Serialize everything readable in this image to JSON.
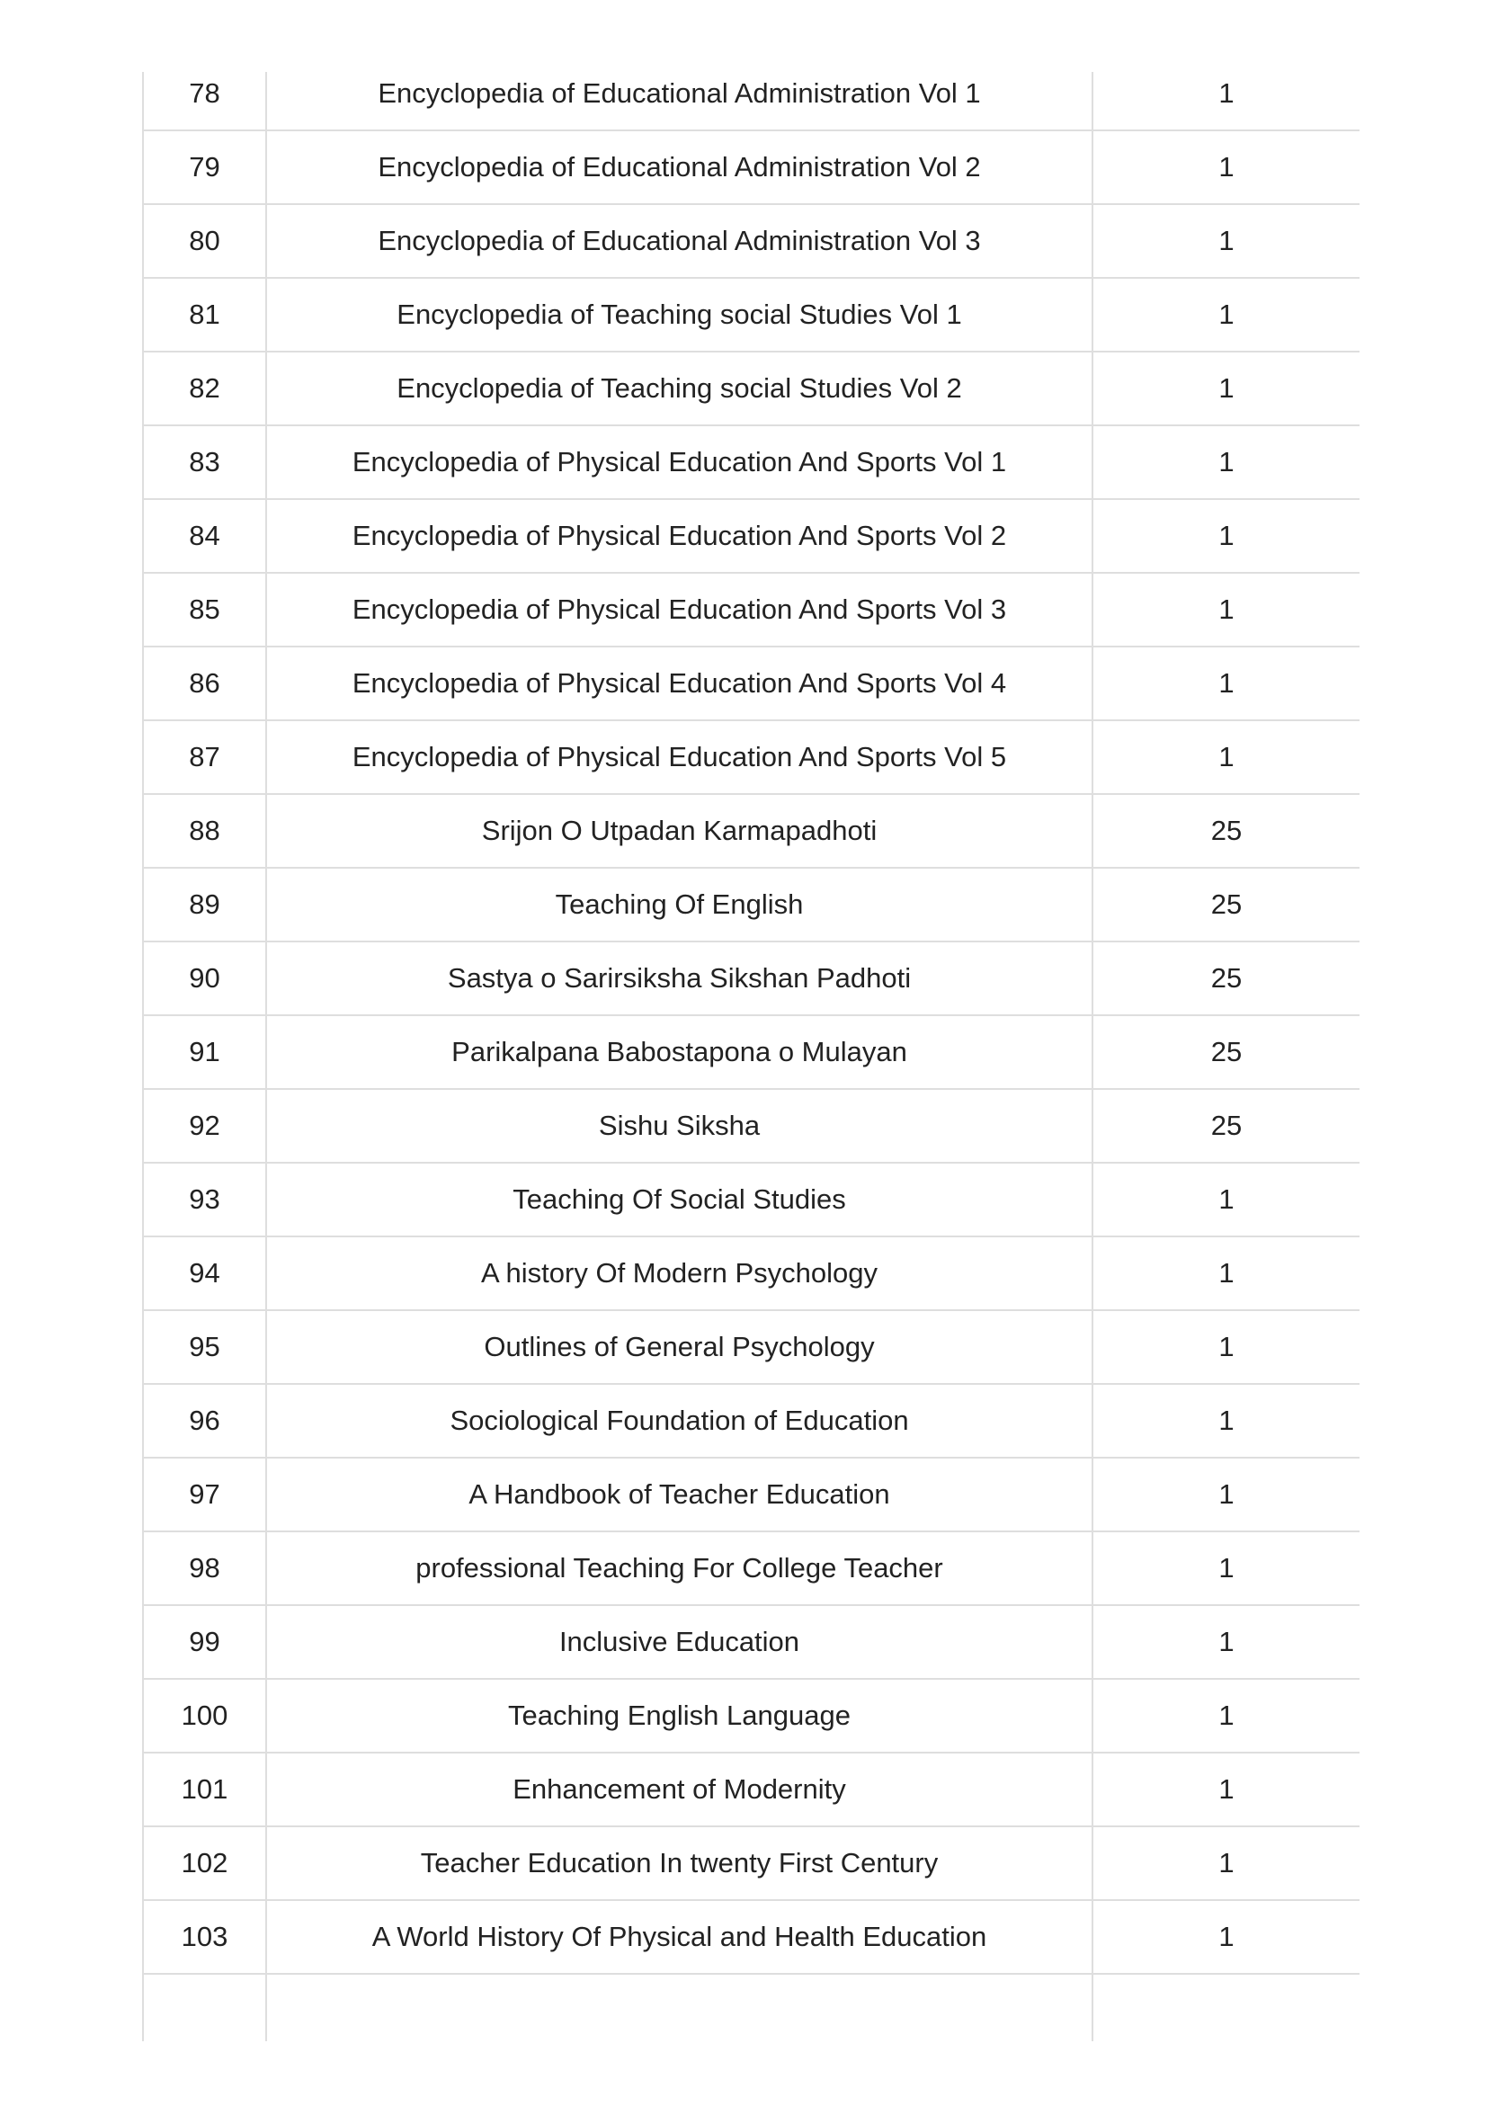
{
  "rows": [
    {
      "sl": "78",
      "title": "Encyclopedia of Educational Administration Vol 1",
      "qty": "1"
    },
    {
      "sl": "79",
      "title": "Encyclopedia of Educational Administration Vol 2",
      "qty": "1"
    },
    {
      "sl": "80",
      "title": "Encyclopedia of Educational Administration Vol 3",
      "qty": "1"
    },
    {
      "sl": "81",
      "title": "Encyclopedia of Teaching social Studies Vol 1",
      "qty": "1"
    },
    {
      "sl": "82",
      "title": "Encyclopedia of Teaching social Studies Vol 2",
      "qty": "1"
    },
    {
      "sl": "83",
      "title": "Encyclopedia of Physical Education And Sports Vol 1",
      "qty": "1"
    },
    {
      "sl": "84",
      "title": "Encyclopedia of Physical Education And Sports Vol 2",
      "qty": "1"
    },
    {
      "sl": "85",
      "title": "Encyclopedia of Physical Education And Sports Vol 3",
      "qty": "1"
    },
    {
      "sl": "86",
      "title": "Encyclopedia of Physical Education And Sports Vol 4",
      "qty": "1"
    },
    {
      "sl": "87",
      "title": "Encyclopedia of Physical Education And Sports Vol 5",
      "qty": "1"
    },
    {
      "sl": "88",
      "title": "Srijon O Utpadan Karmapadhoti",
      "qty": "25"
    },
    {
      "sl": "89",
      "title": "Teaching Of English",
      "qty": "25"
    },
    {
      "sl": "90",
      "title": "Sastya o Sarirsiksha Sikshan Padhoti",
      "qty": "25"
    },
    {
      "sl": "91",
      "title": "Parikalpana Babostapona o Mulayan",
      "qty": "25"
    },
    {
      "sl": "92",
      "title": "Sishu Siksha",
      "qty": "25"
    },
    {
      "sl": "93",
      "title": "Teaching Of Social Studies",
      "qty": "1"
    },
    {
      "sl": "94",
      "title": "A history Of Modern Psychology",
      "qty": "1"
    },
    {
      "sl": "95",
      "title": "Outlines of General Psychology",
      "qty": "1"
    },
    {
      "sl": "96",
      "title": "Sociological Foundation of Education",
      "qty": "1"
    },
    {
      "sl": "97",
      "title": "A Handbook of Teacher Education",
      "qty": "1"
    },
    {
      "sl": "98",
      "title": "professional Teaching For College Teacher",
      "qty": "1"
    },
    {
      "sl": "99",
      "title": "Inclusive Education",
      "qty": "1"
    },
    {
      "sl": "100",
      "title": "Teaching English Language",
      "qty": "1"
    },
    {
      "sl": "101",
      "title": "Enhancement of Modernity",
      "qty": "1"
    },
    {
      "sl": "102",
      "title": "Teacher Education In twenty First Century",
      "qty": "1"
    },
    {
      "sl": "103",
      "title": "A World History Of Physical and Health Education",
      "qty": "1"
    },
    {
      "sl": "",
      "title": "",
      "qty": ""
    }
  ]
}
